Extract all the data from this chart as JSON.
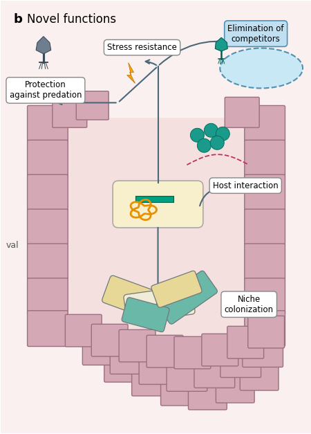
{
  "bg_color": "#faf0f0",
  "cell_fill": "#d4a8b4",
  "cell_edge": "#9a7080",
  "lumen_fill": "#f5e8e8",
  "bact_fill": "#f8f0cc",
  "bact_edge": "#aaaaaa",
  "prophage_color": "#00a080",
  "chrom_color": "#e89000",
  "arrow_color": "#4a6878",
  "teal_dot_color": "#1a9a8a",
  "pink_dash_color": "#c03060",
  "elim_box_fill": "#c0dff0",
  "elim_box_edge": "#5090b0",
  "label_fill": "white",
  "label_edge": "#888888",
  "phage_body_color": "#607080",
  "phage_teal_color": "#1a9a8a",
  "lightning_color": "#f0a000",
  "bact_yellow_fill": "#e8d898",
  "bact_cream_fill": "#f0ecd8",
  "bact_teal_fill": "#6ab8a8",
  "title_b": "b",
  "title_text": "Novel functions",
  "val_text": "val"
}
